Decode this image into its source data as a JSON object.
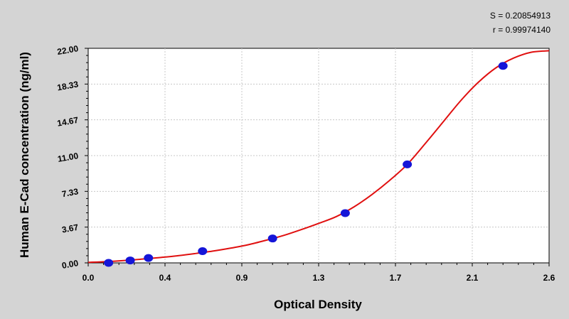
{
  "stats": {
    "s_text": "S = 0.20854913",
    "r_text": "r = 0.99974140"
  },
  "colors": {
    "background": "#d4d4d4",
    "plot_area": "#ffffff",
    "curve": "#e01010",
    "points": "#1515d8",
    "grid": "#c8c8c8"
  },
  "chart_data": {
    "type": "scatter",
    "title": "",
    "xlabel": "Optical Density",
    "ylabel": "Human E-Cad concentration (ng/ml)",
    "xlim": [
      0.0,
      2.6
    ],
    "ylim": [
      0.0,
      22.0
    ],
    "x_ticks": [
      "0.0",
      "0.4",
      "0.9",
      "1.3",
      "1.7",
      "2.1",
      "2.6"
    ],
    "y_ticks": [
      "0.00",
      "3.67",
      "7.33",
      "11.00",
      "14.67",
      "18.33",
      "22.00"
    ],
    "grid": true,
    "points": [
      {
        "x": 0.115,
        "y": 0.0
      },
      {
        "x": 0.237,
        "y": 0.25
      },
      {
        "x": 0.34,
        "y": 0.5
      },
      {
        "x": 0.645,
        "y": 1.2
      },
      {
        "x": 1.04,
        "y": 2.5
      },
      {
        "x": 1.45,
        "y": 5.1
      },
      {
        "x": 1.8,
        "y": 10.1
      },
      {
        "x": 2.34,
        "y": 20.2
      }
    ],
    "fit_curve": [
      [
        0.0,
        0.05
      ],
      [
        0.1,
        0.13
      ],
      [
        0.2,
        0.24
      ],
      [
        0.3,
        0.38
      ],
      [
        0.4,
        0.54
      ],
      [
        0.5,
        0.72
      ],
      [
        0.6,
        0.95
      ],
      [
        0.7,
        1.2
      ],
      [
        0.8,
        1.5
      ],
      [
        0.9,
        1.85
      ],
      [
        1.0,
        2.3
      ],
      [
        1.1,
        2.8
      ],
      [
        1.2,
        3.4
      ],
      [
        1.3,
        4.05
      ],
      [
        1.4,
        4.75
      ],
      [
        1.5,
        5.75
      ],
      [
        1.6,
        7.0
      ],
      [
        1.7,
        8.45
      ],
      [
        1.8,
        10.1
      ],
      [
        1.9,
        12.2
      ],
      [
        2.0,
        14.4
      ],
      [
        2.1,
        16.6
      ],
      [
        2.2,
        18.5
      ],
      [
        2.3,
        20.0
      ],
      [
        2.4,
        21.0
      ],
      [
        2.5,
        21.6
      ],
      [
        2.6,
        21.75
      ]
    ]
  }
}
